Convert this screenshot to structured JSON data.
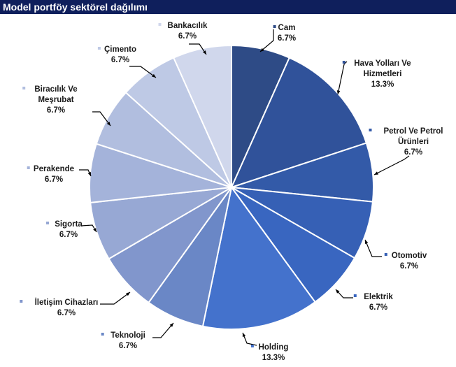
{
  "header": {
    "title": "Model portföy sektörel dağılımı"
  },
  "chart_data": {
    "type": "pie",
    "title": "Model portföy sektörel dağılımı",
    "slices": [
      {
        "name": "Cam",
        "lines": [
          "Cam"
        ],
        "value": 6.7,
        "pct": "6.7%",
        "color": "#2e4b86"
      },
      {
        "name": "Hava Yolları Ve Hizmetleri",
        "lines": [
          "Hava Yolları Ve",
          "Hizmetleri"
        ],
        "value": 13.3,
        "pct": "13.3%",
        "color": "#30529a"
      },
      {
        "name": "Petrol Ve Petrol Ürünleri",
        "lines": [
          "Petrol  Ve Petrol",
          "Ürünleri"
        ],
        "value": 6.7,
        "pct": "6.7%",
        "color": "#335aa8"
      },
      {
        "name": "Otomotiv",
        "lines": [
          "Otomotiv"
        ],
        "value": 6.7,
        "pct": "6.7%",
        "color": "#3660b5"
      },
      {
        "name": "Elektrik",
        "lines": [
          "Elektrik"
        ],
        "value": 6.7,
        "pct": "6.7%",
        "color": "#3966c0"
      },
      {
        "name": "Holding",
        "lines": [
          "Holding"
        ],
        "value": 13.3,
        "pct": "13.3%",
        "color": "#4472cc"
      },
      {
        "name": "Teknoloji",
        "lines": [
          "Teknoloji"
        ],
        "value": 6.7,
        "pct": "6.7%",
        "color": "#6a87c6"
      },
      {
        "name": "İletişim Cihazları",
        "lines": [
          "İletişim Cihazları"
        ],
        "value": 6.7,
        "pct": "6.7%",
        "color": "#8196cc"
      },
      {
        "name": "Sigorta",
        "lines": [
          "Sigorta"
        ],
        "value": 6.7,
        "pct": "6.7%",
        "color": "#97a8d4"
      },
      {
        "name": "Perakende",
        "lines": [
          "Perakende"
        ],
        "value": 6.7,
        "pct": "6.7%",
        "color": "#a4b3da"
      },
      {
        "name": "Biracılık Ve Meşrubat",
        "lines": [
          "Biracılık Ve",
          "Meşrubat"
        ],
        "value": 6.7,
        "pct": "6.7%",
        "color": "#b1bedf"
      },
      {
        "name": "Çimento",
        "lines": [
          "Çimento"
        ],
        "value": 6.7,
        "pct": "6.7%",
        "color": "#bec9e5"
      },
      {
        "name": "Bankacılık",
        "lines": [
          "Bankacılık"
        ],
        "value": 6.7,
        "pct": "6.7%",
        "color": "#d0d7ec"
      }
    ]
  }
}
